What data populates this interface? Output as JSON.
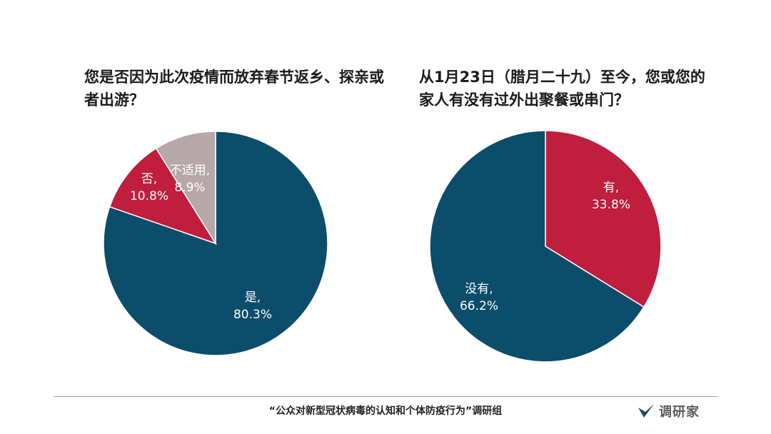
{
  "charts": [
    {
      "title": "您是否因为此次疫情而放弃春节返乡、探亲或者出游？"
    },
    {
      "title": "从1月23日（腊月二十九）至今，您或您的家人有没有过外出聚餐或串门？"
    }
  ],
  "chart_data": [
    {
      "type": "pie",
      "title": "您是否因为此次疫情而放弃春节返乡、探亲或者出游？",
      "slices": [
        {
          "name": "是",
          "value": 80.3,
          "color": "#0b4d6b",
          "label_line1": "是,",
          "label_line2": "80.3%"
        },
        {
          "name": "否",
          "value": 10.8,
          "color": "#bf1e3c",
          "label_line1": "否,",
          "label_line2": "10.8%"
        },
        {
          "name": "不适用",
          "value": 8.9,
          "color": "#b6a8a8",
          "label_line1": "不适用,",
          "label_line2": "8.9%"
        }
      ]
    },
    {
      "type": "pie",
      "title": "从1月23日（腊月二十九）至今，您或您的家人有没有过外出聚餐或串门？",
      "slices": [
        {
          "name": "有",
          "value": 33.8,
          "color": "#bf1e3c",
          "label_line1": "有,",
          "label_line2": "33.8%"
        },
        {
          "name": "没有",
          "value": 66.2,
          "color": "#0b4d6b",
          "label_line1": "没有,",
          "label_line2": "66.2%"
        }
      ]
    }
  ],
  "footer": {
    "source": "“公众对新型冠状病毒的认知和个体防疫行为”调研组",
    "brand_name": "调研家",
    "brand_icon": "brand-check-icon",
    "brand_color": "#1d4a66"
  }
}
